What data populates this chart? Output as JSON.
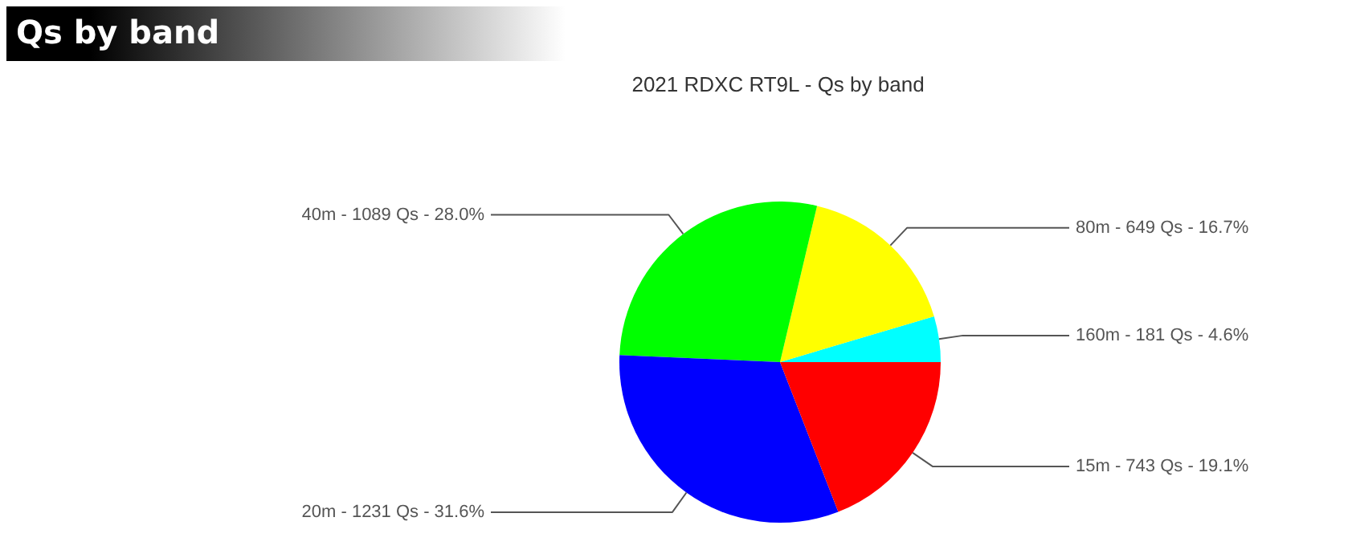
{
  "chart_data": {
    "type": "pie",
    "title": "Qs by band",
    "subtitle": "2021 RDXC RT9L - Qs by band",
    "categories": [
      "160m - 181 Qs - 4.6%",
      "80m - 649 Qs - 16.7%",
      "40m - 1089 Qs - 28.0%",
      "20m - 1231 Qs - 31.6%",
      "15m - 743 Qs - 19.1%"
    ],
    "values": [
      4.6,
      16.7,
      28.0,
      31.6,
      19.1
    ],
    "colors": [
      "#00ffff",
      "#ffff00",
      "#00ff00",
      "#0000ff",
      "#ff0000"
    ]
  }
}
